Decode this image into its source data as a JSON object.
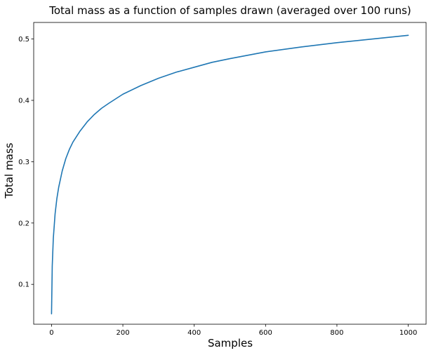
{
  "chart_data": {
    "type": "line",
    "title": "Total mass as a function of samples drawn (averaged over 100 runs)",
    "xlabel": "Samples",
    "ylabel": "Total mass",
    "xlim": [
      -50,
      1050
    ],
    "ylim": [
      0.035,
      0.527
    ],
    "xticks": [
      0,
      200,
      400,
      600,
      800,
      1000
    ],
    "xtick_labels": [
      "0",
      "200",
      "400",
      "600",
      "800",
      "1000"
    ],
    "yticks": [
      0.1,
      0.2,
      0.3,
      0.4,
      0.5
    ],
    "ytick_labels": [
      "0.1",
      "0.2",
      "0.3",
      "0.4",
      "0.5"
    ],
    "grid": false,
    "series": [
      {
        "color": "#1f77b4",
        "x": [
          0,
          2,
          5,
          10,
          15,
          20,
          30,
          40,
          50,
          60,
          80,
          100,
          120,
          140,
          160,
          200,
          250,
          300,
          350,
          400,
          450,
          500,
          600,
          700,
          800,
          900,
          1000
        ],
        "values": [
          0.052,
          0.13,
          0.175,
          0.215,
          0.24,
          0.258,
          0.285,
          0.305,
          0.32,
          0.332,
          0.35,
          0.365,
          0.377,
          0.387,
          0.395,
          0.41,
          0.424,
          0.436,
          0.446,
          0.454,
          0.462,
          0.468,
          0.479,
          0.487,
          0.494,
          0.5,
          0.506
        ]
      }
    ]
  }
}
